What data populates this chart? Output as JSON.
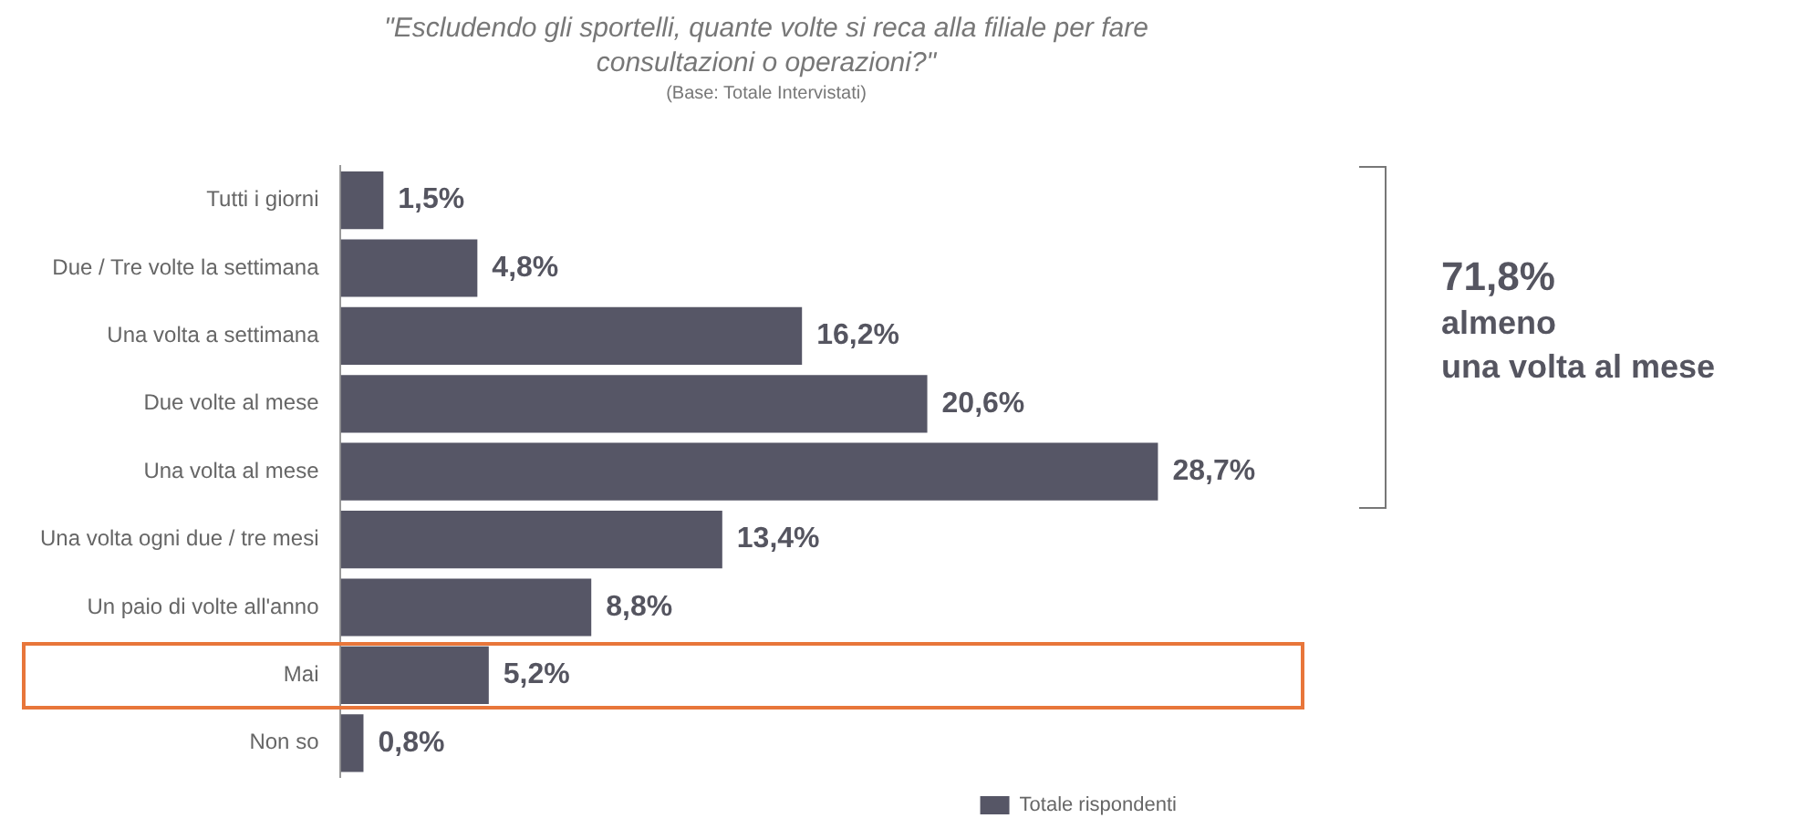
{
  "chart_data": {
    "type": "bar",
    "orientation": "horizontal",
    "title": "\"Escludendo gli sportelli, quante volte si reca alla filiale per fare consultazioni o operazioni?\"",
    "subtitle": "(Base: Totale Intervistati)",
    "categories": [
      "Tutti i giorni",
      "Due / Tre volte la settimana",
      "Una volta a settimana",
      "Due volte al mese",
      "Una volta al mese",
      "Una volta ogni due / tre mesi",
      "Un paio di volte all'anno",
      "Mai",
      "Non so"
    ],
    "series": [
      {
        "name": "Totale rispondenti",
        "color": "#565666",
        "values": [
          1.5,
          4.8,
          16.2,
          20.6,
          28.7,
          13.4,
          8.8,
          5.2,
          0.8
        ],
        "value_labels": [
          "1,5%",
          "4,8%",
          "16,2%",
          "20,6%",
          "28,7%",
          "13,4%",
          "8,8%",
          "5,2%",
          "0,8%"
        ]
      }
    ],
    "annotations": [
      "71,8%",
      "almeno\nuna volta al mese"
    ],
    "legend": "bottom right",
    "grid": false
  }
}
